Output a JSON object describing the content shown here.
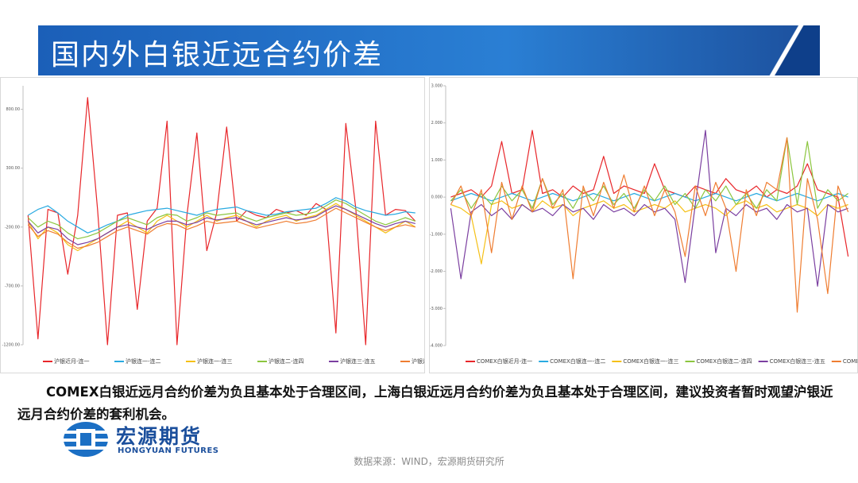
{
  "header": {
    "title": "国内外白银近远合约价差"
  },
  "chart_data": [
    {
      "type": "line",
      "categories": [
        null,
        null,
        null,
        null,
        null,
        null,
        null,
        null,
        null,
        null,
        null,
        null,
        null,
        null,
        null,
        null,
        null,
        null,
        null,
        null,
        null,
        null,
        null,
        null,
        null,
        null,
        null,
        null,
        null,
        null,
        null,
        null,
        null,
        null,
        null,
        null,
        null,
        null,
        null,
        null
      ],
      "ylim": [
        -1200,
        1000
      ],
      "yticks": [
        {
          "value": 800,
          "label": "800.00"
        },
        {
          "value": 300,
          "label": "300.00"
        },
        {
          "value": -200,
          "label": "-200.00"
        },
        {
          "value": -700,
          "label": "-700.00"
        },
        {
          "value": -1200,
          "label": "-1200.00"
        }
      ],
      "legend": "bottom",
      "series": [
        {
          "name": "沪银近月-连一",
          "color": "#e8262a",
          "values": [
            -100,
            -1150,
            -50,
            -80,
            -600,
            -100,
            900,
            -50,
            -1200,
            -100,
            -80,
            -900,
            -150,
            -40,
            700,
            -1200,
            -100,
            600,
            -400,
            -80,
            650,
            -150,
            -60,
            -100,
            -120,
            -50,
            -80,
            -60,
            -100,
            0,
            -50,
            -1100,
            680,
            -40,
            -1200,
            700,
            -100,
            -50,
            -60,
            -150
          ]
        },
        {
          "name": "沪银连一-连二",
          "color": "#29aae1",
          "values": [
            -100,
            -50,
            -20,
            -80,
            -150,
            -200,
            -250,
            -220,
            -180,
            -150,
            -100,
            -80,
            -60,
            -50,
            -40,
            -60,
            -80,
            -100,
            -70,
            -50,
            -40,
            -30,
            -60,
            -80,
            -100,
            -90,
            -70,
            -60,
            -50,
            -40,
            0,
            50,
            20,
            -30,
            -60,
            -80,
            -100,
            -90,
            -70,
            -80
          ]
        },
        {
          "name": "沪银连一-连三",
          "color": "#f5c016",
          "values": [
            -150,
            -300,
            -200,
            -250,
            -350,
            -400,
            -350,
            -300,
            -250,
            -200,
            -150,
            -200,
            -250,
            -150,
            -100,
            -150,
            -200,
            -150,
            -100,
            -150,
            -120,
            -100,
            -150,
            -200,
            -150,
            -120,
            -100,
            -150,
            -120,
            -100,
            -50,
            0,
            -50,
            -100,
            -150,
            -200,
            -250,
            -200,
            -150,
            -200
          ]
        },
        {
          "name": "沪银连二-连四",
          "color": "#8cc63f",
          "values": [
            -120,
            -200,
            -150,
            -180,
            -250,
            -300,
            -280,
            -250,
            -200,
            -150,
            -120,
            -150,
            -180,
            -120,
            -90,
            -100,
            -150,
            -120,
            -80,
            -100,
            -90,
            -80,
            -120,
            -150,
            -120,
            -100,
            -80,
            -100,
            -90,
            -70,
            -20,
            30,
            0,
            -50,
            -100,
            -150,
            -180,
            -150,
            -120,
            -150
          ]
        },
        {
          "name": "沪银连三-连五",
          "color": "#7b3fa0",
          "values": [
            -150,
            -250,
            -200,
            -220,
            -300,
            -350,
            -330,
            -300,
            -250,
            -200,
            -180,
            -200,
            -220,
            -180,
            -150,
            -150,
            -180,
            -160,
            -120,
            -140,
            -130,
            -120,
            -150,
            -180,
            -160,
            -140,
            -120,
            -140,
            -130,
            -110,
            -60,
            -20,
            -50,
            -90,
            -130,
            -170,
            -200,
            -170,
            -150,
            -170
          ]
        },
        {
          "name": "沪银连四-连六",
          "color": "#ef7d31",
          "values": [
            -180,
            -280,
            -230,
            -260,
            -330,
            -380,
            -360,
            -330,
            -280,
            -230,
            -200,
            -230,
            -260,
            -200,
            -170,
            -180,
            -220,
            -190,
            -150,
            -170,
            -160,
            -150,
            -180,
            -210,
            -190,
            -170,
            -150,
            -170,
            -160,
            -140,
            -90,
            -40,
            -80,
            -120,
            -160,
            -200,
            -230,
            -200,
            -180,
            -200
          ]
        }
      ]
    },
    {
      "type": "line",
      "categories": [
        null,
        null,
        null,
        null,
        null,
        null,
        null,
        null,
        null,
        null,
        null,
        null,
        null,
        null,
        null,
        null,
        null,
        null,
        null,
        null,
        null,
        null,
        null,
        null,
        null,
        null,
        null,
        null,
        null,
        null,
        null,
        null,
        null,
        null,
        null,
        null,
        null,
        null,
        null,
        null
      ],
      "ylim": [
        -4,
        3
      ],
      "yticks": [
        {
          "value": 3,
          "label": "3.000"
        },
        {
          "value": 2,
          "label": "2.000"
        },
        {
          "value": 1,
          "label": "1.000"
        },
        {
          "value": 0,
          "label": "0.000"
        },
        {
          "value": -1,
          "label": "-1.000"
        },
        {
          "value": -2,
          "label": "-2.000"
        },
        {
          "value": -3,
          "label": "-3.000"
        },
        {
          "value": -4,
          "label": "-4.000"
        }
      ],
      "legend": "bottom",
      "series": [
        {
          "name": "COMEX白银近月-连一",
          "color": "#e8262a",
          "values": [
            0,
            0.1,
            0.2,
            0,
            0.3,
            1.5,
            0.1,
            0.2,
            1.8,
            0.1,
            0.2,
            0,
            0.3,
            0.1,
            0.2,
            1.1,
            0.1,
            0.3,
            0.2,
            0.1,
            0.9,
            0.2,
            0.1,
            0,
            0.3,
            0.2,
            0.1,
            0.5,
            0.2,
            0.1,
            0.3,
            0,
            0.2,
            0.1,
            0.3,
            0.9,
            0.2,
            0.1,
            0,
            -1.6
          ]
        },
        {
          "name": "COMEX白银连一-连二",
          "color": "#29aae1",
          "values": [
            -0.1,
            0,
            0.1,
            0,
            -0.1,
            0,
            0.1,
            0,
            -0.1,
            0,
            0.1,
            0,
            -0.1,
            0,
            0.1,
            0,
            -0.1,
            0,
            0.1,
            0,
            -0.1,
            0,
            0.1,
            0,
            -0.1,
            0,
            0.1,
            0,
            -0.1,
            0,
            0.1,
            0,
            -0.1,
            0,
            0.1,
            0,
            -0.1,
            0,
            0.1,
            0
          ]
        },
        {
          "name": "COMEX白银连一-连三",
          "color": "#f5c016",
          "values": [
            -0.2,
            -0.3,
            -0.5,
            -1.8,
            -0.2,
            -0.1,
            -0.3,
            -0.2,
            -0.4,
            -0.1,
            -0.3,
            -0.2,
            -0.5,
            -0.3,
            -0.2,
            -0.1,
            -0.3,
            -0.2,
            -0.4,
            -0.3,
            -0.2,
            -0.3,
            -0.1,
            -0.4,
            -0.3,
            -0.2,
            -0.3,
            -0.5,
            -0.2,
            -0.1,
            -0.3,
            -0.2,
            -0.4,
            -0.3,
            -0.2,
            -0.3,
            -0.5,
            -0.2,
            -0.3,
            -0.2
          ]
        },
        {
          "name": "COMEX白银连二-连四",
          "color": "#8cc63f",
          "values": [
            -0.1,
            0.2,
            -0.3,
            0.1,
            -0.2,
            0.3,
            -0.1,
            0.2,
            -0.3,
            0.5,
            -0.2,
            0.1,
            -0.3,
            0.2,
            -0.1,
            0.3,
            -0.2,
            0.1,
            -0.3,
            0.2,
            -0.1,
            0.3,
            -0.2,
            0.1,
            -0.3,
            0.2,
            -0.1,
            0.3,
            -0.2,
            0.1,
            -0.3,
            0.2,
            -0.1,
            1.6,
            -0.2,
            1.5,
            -0.3,
            0.2,
            -0.1,
            0.1
          ]
        },
        {
          "name": "COMEX白银连三-连五",
          "color": "#7b3fa0",
          "values": [
            -0.3,
            -2.2,
            -0.4,
            -0.2,
            -0.5,
            -0.3,
            -0.6,
            -0.2,
            -0.4,
            -0.3,
            -0.5,
            -0.2,
            -0.4,
            -0.3,
            -0.6,
            -0.2,
            -0.4,
            -0.3,
            -0.5,
            -0.2,
            -0.4,
            -0.3,
            -0.6,
            -2.3,
            -0.2,
            1.8,
            -1.5,
            -0.3,
            -0.5,
            -0.2,
            -0.4,
            -0.3,
            -0.6,
            -0.2,
            -0.4,
            -0.3,
            -2.4,
            -0.2,
            -0.4,
            -0.3
          ]
        },
        {
          "name": "COMEX白银连四-连六",
          "color": "#ef7d31",
          "values": [
            -0.2,
            0.3,
            -0.5,
            0.2,
            -1.5,
            0.4,
            -0.6,
            0.3,
            -0.4,
            0.5,
            -0.3,
            0.2,
            -2.2,
            0.3,
            -0.5,
            0.4,
            -0.3,
            0.6,
            -0.4,
            0.3,
            -0.5,
            0.2,
            -0.4,
            -1.6,
            0.3,
            -0.5,
            0.4,
            -0.3,
            -2,
            0.2,
            -0.5,
            0.4,
            0.2,
            1.6,
            -3.1,
            0.5,
            -0.6,
            -2.6,
            0.3,
            -0.4
          ]
        }
      ]
    }
  ],
  "commentary": "COMEX白银近远月合约价差为负且基本处于合理区间，上海白银近远月合约价差为负且基本处于合理区间，建议投资者暂时观望沪银近远月合约价差的套利机会。",
  "logo": {
    "name": "宏源期货",
    "english": "HONGYUAN FUTURES"
  },
  "source": "数据来源：WIND，宏源期货研究所"
}
